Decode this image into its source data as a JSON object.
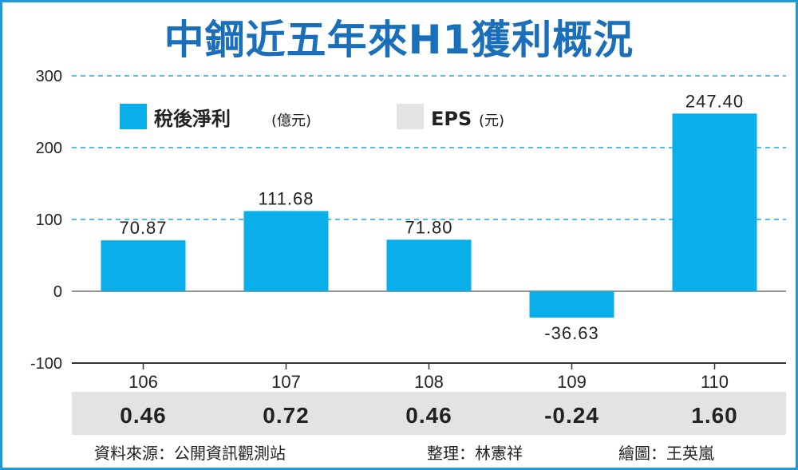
{
  "colors": {
    "bar": "#0aaee9",
    "eps_band": "#e3e3e3",
    "grid": "#1ba7dc",
    "title": "#1a6fba"
  },
  "chart_data": {
    "type": "bar",
    "title": "中鋼近五年來H1獲利概況",
    "categories": [
      "106",
      "107",
      "108",
      "109",
      "110"
    ],
    "series": [
      {
        "name": "稅後淨利",
        "unit": "(億元)",
        "values": [
          70.87,
          111.68,
          71.8,
          -36.63,
          247.4
        ],
        "labels": [
          "70.87",
          "111.68",
          "71.80",
          "-36.63",
          "247.40"
        ]
      }
    ],
    "eps": {
      "name": "EPS",
      "unit": "(元)",
      "values": [
        0.46,
        0.72,
        0.46,
        -0.24,
        1.6
      ],
      "labels": [
        "0.46",
        "0.72",
        "0.46",
        "-0.24",
        "1.60"
      ]
    },
    "ylim": [
      -100,
      300
    ],
    "yticks": [
      300,
      200,
      100,
      0,
      -100
    ],
    "grid": true,
    "legend": "top-left"
  },
  "footer": {
    "source": "資料來源：公開資訊觀測站",
    "editor": "整理：林憲祥",
    "artist": "繪圖：王英嵐"
  }
}
